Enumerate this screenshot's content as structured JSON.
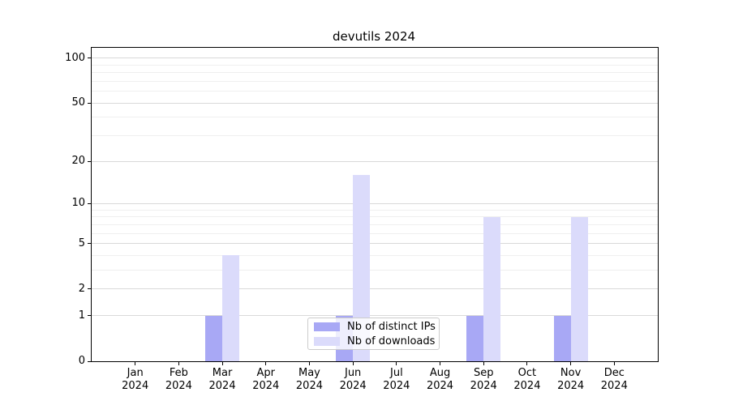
{
  "chart": {
    "title": "devutils 2024"
  },
  "chart_data": {
    "type": "bar",
    "title": "devutils 2024",
    "xlabel": "",
    "ylabel": "",
    "categories": [
      "Jan 2024",
      "Feb 2024",
      "Mar 2024",
      "Apr 2024",
      "May 2024",
      "Jun 2024",
      "Jul 2024",
      "Aug 2024",
      "Sep 2024",
      "Oct 2024",
      "Nov 2024",
      "Dec 2024"
    ],
    "series": [
      {
        "name": "Nb of distinct IPs",
        "color": "#a8a8f5",
        "values": [
          0,
          0,
          1,
          0,
          0,
          1,
          0,
          0,
          1,
          0,
          1,
          0
        ]
      },
      {
        "name": "Nb of downloads",
        "color": "#dbdbfb",
        "values": [
          0,
          0,
          4,
          0,
          0,
          16,
          0,
          0,
          8,
          0,
          8,
          0
        ]
      }
    ],
    "yscale": "log1p",
    "y_ticks": [
      0,
      1,
      2,
      5,
      10,
      20,
      50,
      100
    ],
    "y_minor_ticks": [
      3,
      4,
      6,
      7,
      8,
      9,
      30,
      40,
      60,
      70,
      80,
      90
    ],
    "ylim": [
      0,
      117
    ],
    "grid": true,
    "legend_position": "lower center",
    "colors": {
      "grid_major": "#d9d9d9",
      "grid_minor": "#efefef",
      "spine": "#000000",
      "text": "#000000"
    }
  }
}
